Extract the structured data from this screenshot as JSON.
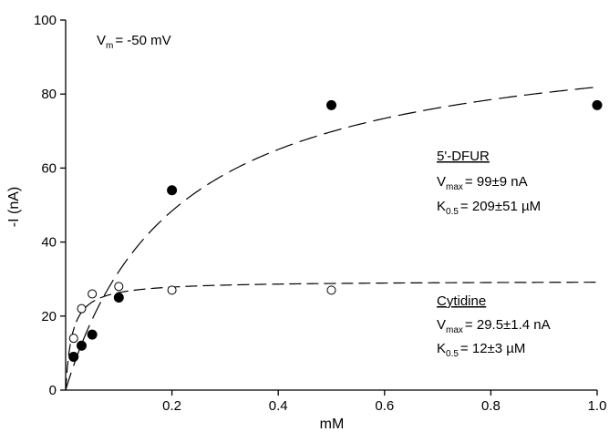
{
  "chart_data": {
    "type": "scatter",
    "xlabel": "mM",
    "ylabel": "-I (nA)",
    "xlim": [
      0,
      1.0
    ],
    "ylim": [
      0,
      100
    ],
    "x_ticks": [
      "0.2",
      "0.4",
      "0.6",
      "0.8",
      "1.0"
    ],
    "y_ticks": [
      "0",
      "20",
      "40",
      "60",
      "80",
      "100"
    ],
    "grid": false,
    "condition": {
      "main": "V",
      "sub": "m",
      "rest": "= -50 mV"
    },
    "series": [
      {
        "name": "5'-DFUR",
        "marker": "filled-circle",
        "x": [
          0.015,
          0.03,
          0.05,
          0.1,
          0.2,
          0.5,
          1.0
        ],
        "y": [
          9,
          12,
          15,
          25,
          54,
          77,
          77
        ],
        "fit": {
          "model": "michaelis-menten",
          "vmax": 99,
          "km_mM": 0.209,
          "dash": "long"
        },
        "stats": {
          "vmax": {
            "main": "V",
            "sub": "max",
            "rest": "= 99",
            "pm": "±",
            "err": "9 nA"
          },
          "k05": {
            "main": "K",
            "sub": "0.5",
            "rest": "= 209",
            "pm": "±",
            "err": "51 µM"
          }
        }
      },
      {
        "name": "Cytidine",
        "marker": "open-circle",
        "x": [
          0.015,
          0.03,
          0.05,
          0.1,
          0.2,
          0.5
        ],
        "y": [
          14,
          22,
          26,
          28,
          27,
          27
        ],
        "fit": {
          "model": "michaelis-menten",
          "vmax": 29.5,
          "km_mM": 0.012,
          "dash": "medium"
        },
        "stats": {
          "vmax": {
            "main": "V",
            "sub": "max",
            "rest": "= 29.5",
            "pm": "±",
            "err": "1.4 nA"
          },
          "k05": {
            "main": "K",
            "sub": "0.5",
            "rest": "= 12",
            "pm": "±",
            "err": "3 µM"
          }
        }
      }
    ],
    "colors": {
      "marker": "#000000",
      "line": "#000000"
    }
  }
}
